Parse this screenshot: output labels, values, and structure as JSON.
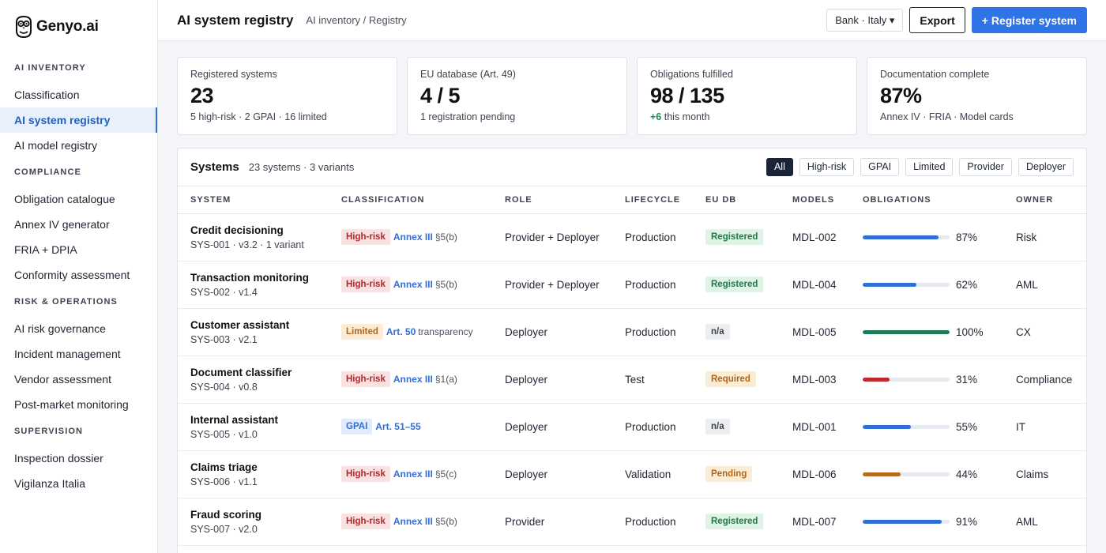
{
  "brand": {
    "name": "Genyo.ai"
  },
  "sidebar": {
    "sections": [
      {
        "title": "AI INVENTORY",
        "items": [
          {
            "label": "Classification",
            "active": false
          },
          {
            "label": "AI system registry",
            "active": true
          },
          {
            "label": "AI model registry",
            "active": false
          }
        ]
      },
      {
        "title": "COMPLIANCE",
        "items": [
          {
            "label": "Obligation catalogue",
            "active": false
          },
          {
            "label": "Annex IV generator",
            "active": false
          },
          {
            "label": "FRIA + DPIA",
            "active": false
          },
          {
            "label": "Conformity assessment",
            "active": false
          }
        ]
      },
      {
        "title": "RISK & OPERATIONS",
        "items": [
          {
            "label": "AI risk governance",
            "active": false
          },
          {
            "label": "Incident management",
            "active": false
          },
          {
            "label": "Vendor assessment",
            "active": false
          },
          {
            "label": "Post-market monitoring",
            "active": false
          }
        ]
      },
      {
        "title": "SUPERVISION",
        "items": [
          {
            "label": "Inspection dossier",
            "active": false
          },
          {
            "label": "Vigilanza Italia",
            "active": false
          }
        ]
      }
    ]
  },
  "header": {
    "title": "AI system registry",
    "breadcrumb": "AI inventory / Registry",
    "tenant": "Bank · Italy ▾",
    "export_label": "Export",
    "register_label": "+ Register system"
  },
  "stats": [
    {
      "label": "Registered systems",
      "value": "23",
      "sub": "5 high-risk · 2 GPAI · 16 limited",
      "delta": ""
    },
    {
      "label": "EU database (Art. 49)",
      "value": "4 / 5",
      "sub": "1 registration pending",
      "delta": ""
    },
    {
      "label": "Obligations fulfilled",
      "value": "98 / 135",
      "sub": " this month",
      "delta": "+6"
    },
    {
      "label": "Documentation complete",
      "value": "87%",
      "sub": "Annex IV · FRIA · Model cards",
      "delta": ""
    }
  ],
  "systems": {
    "title": "Systems",
    "count": "23 systems · 3 variants",
    "filters": [
      {
        "label": "All",
        "active": true
      },
      {
        "label": "High-risk",
        "active": false
      },
      {
        "label": "GPAI",
        "active": false
      },
      {
        "label": "Limited",
        "active": false
      },
      {
        "label": "Provider",
        "active": false
      },
      {
        "label": "Deployer",
        "active": false
      }
    ],
    "columns": [
      "SYSTEM",
      "CLASSIFICATION",
      "ROLE",
      "LIFECYCLE",
      "EU DB",
      "MODELS",
      "OBLIGATIONS",
      "OWNER"
    ],
    "rows": [
      {
        "name": "Credit decisioning",
        "meta": "SYS-001 · v3.2 · 1 variant",
        "cls_tag": "High-risk",
        "cls_kind": "high",
        "cls_ref": "Annex III",
        "cls_rest": "§5(b)",
        "role": "Provider + Deployer",
        "lifecycle": "Production",
        "eudb": "Registered",
        "eudb_kind": "registered",
        "model": "MDL-002",
        "oblig": 87,
        "oblig_label": "87%",
        "oblig_color": "#2f6fd6",
        "owner": "Risk"
      },
      {
        "name": "Transaction monitoring",
        "meta": "SYS-002 · v1.4",
        "cls_tag": "High-risk",
        "cls_kind": "high",
        "cls_ref": "Annex III",
        "cls_rest": "§5(b)",
        "role": "Provider + Deployer",
        "lifecycle": "Production",
        "eudb": "Registered",
        "eudb_kind": "registered",
        "model": "MDL-004",
        "oblig": 62,
        "oblig_label": "62%",
        "oblig_color": "#2f6fd6",
        "owner": "AML"
      },
      {
        "name": "Customer assistant",
        "meta": "SYS-003 · v2.1",
        "cls_tag": "Limited",
        "cls_kind": "limited",
        "cls_ref": "Art. 50",
        "cls_rest": "transparency",
        "role": "Deployer",
        "lifecycle": "Production",
        "eudb": "n/a",
        "eudb_kind": "na",
        "model": "MDL-005",
        "oblig": 100,
        "oblig_label": "100%",
        "oblig_color": "#1e7a55",
        "owner": "CX"
      },
      {
        "name": "Document classifier",
        "meta": "SYS-004 · v0.8",
        "cls_tag": "High-risk",
        "cls_kind": "high",
        "cls_ref": "Annex III",
        "cls_rest": "§1(a)",
        "role": "Deployer",
        "lifecycle": "Test",
        "eudb": "Required",
        "eudb_kind": "required",
        "model": "MDL-003",
        "oblig": 31,
        "oblig_label": "31%",
        "oblig_color": "#c0282c",
        "owner": "Compliance"
      },
      {
        "name": "Internal assistant",
        "meta": "SYS-005 · v1.0",
        "cls_tag": "GPAI",
        "cls_kind": "gpai",
        "cls_ref": "Art. 51–55",
        "cls_rest": "",
        "role": "Deployer",
        "lifecycle": "Production",
        "eudb": "n/a",
        "eudb_kind": "na",
        "model": "MDL-001",
        "oblig": 55,
        "oblig_label": "55%",
        "oblig_color": "#2f6fd6",
        "owner": "IT"
      },
      {
        "name": "Claims triage",
        "meta": "SYS-006 · v1.1",
        "cls_tag": "High-risk",
        "cls_kind": "high",
        "cls_ref": "Annex III",
        "cls_rest": "§5(c)",
        "role": "Deployer",
        "lifecycle": "Validation",
        "eudb": "Pending",
        "eudb_kind": "pending",
        "model": "MDL-006",
        "oblig": 44,
        "oblig_label": "44%",
        "oblig_color": "#b86b1e",
        "owner": "Claims"
      },
      {
        "name": "Fraud scoring",
        "meta": "SYS-007 · v2.0",
        "cls_tag": "High-risk",
        "cls_kind": "high",
        "cls_ref": "Annex III",
        "cls_rest": "§5(b)",
        "role": "Provider",
        "lifecycle": "Production",
        "eudb": "Registered",
        "eudb_kind": "registered",
        "model": "MDL-007",
        "oblig": 91,
        "oblig_label": "91%",
        "oblig_color": "#2f6fd6",
        "owner": "AML"
      }
    ]
  }
}
